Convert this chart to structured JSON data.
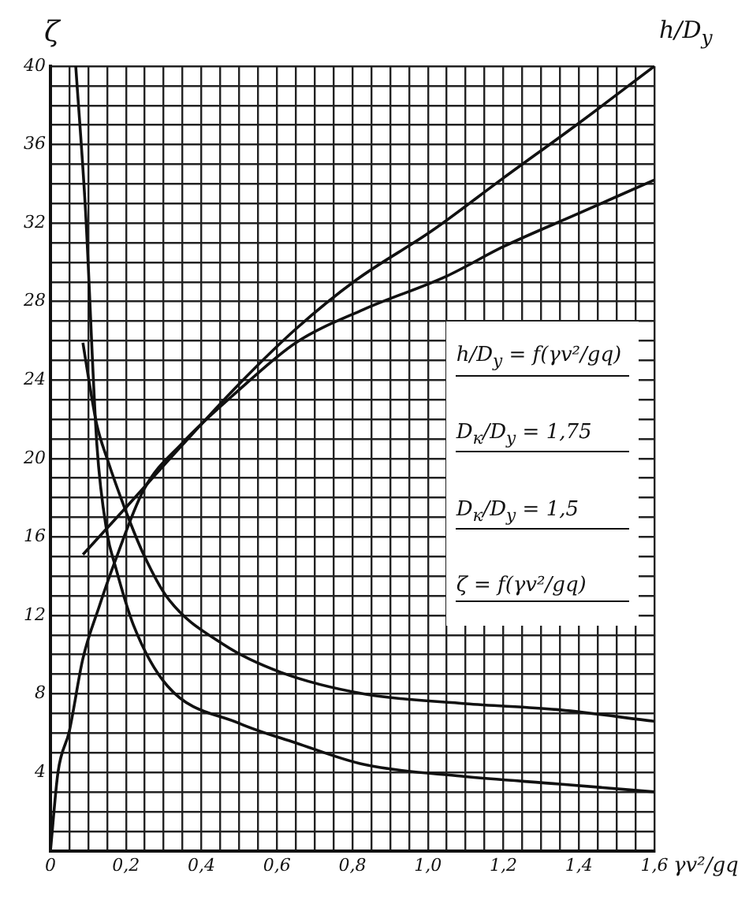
{
  "chart_data": {
    "type": "line",
    "ylabel": "ζ",
    "y2label": "h/D$_{y}$",
    "xlabel": "γv²/gq",
    "xlim": [
      0,
      1.6
    ],
    "xticks": [
      0,
      {
        "value": 0.05,
        "label": null
      },
      {
        "value": 0.1,
        "label": null
      },
      {
        "value": 0.15,
        "label": null
      },
      {
        "value": 0.2,
        "label": "0,2"
      },
      {
        "value": 0.25,
        "label": null
      },
      {
        "value": 0.3,
        "label": null
      },
      {
        "value": 0.35,
        "label": null
      },
      {
        "value": 0.4,
        "label": "0,4"
      },
      {
        "value": 0.45,
        "label": null
      },
      {
        "value": 0.5,
        "label": null
      },
      {
        "value": 0.55,
        "label": null
      },
      {
        "value": 0.6,
        "label": "0,6"
      },
      {
        "value": 0.65,
        "label": null
      },
      {
        "value": 0.7,
        "label": null
      },
      {
        "value": 0.75,
        "label": null
      },
      {
        "value": 0.8,
        "label": "0,8"
      },
      {
        "value": 0.85,
        "label": null
      },
      {
        "value": 0.9,
        "label": null
      },
      {
        "value": 0.95,
        "label": null
      },
      {
        "value": 1.0,
        "label": "1,0"
      },
      {
        "value": 1.05,
        "label": null
      },
      {
        "value": 1.1,
        "label": null
      },
      {
        "value": 1.15,
        "label": null
      },
      {
        "value": 1.2,
        "label": "1,2"
      },
      {
        "value": 1.25,
        "label": null
      },
      {
        "value": 1.3,
        "label": null
      },
      {
        "value": 1.35,
        "label": null
      },
      {
        "value": 1.4,
        "label": "1,4"
      },
      {
        "value": 1.45,
        "label": null
      },
      {
        "value": 1.5,
        "label": null
      },
      {
        "value": 1.55,
        "label": null
      },
      {
        "value": 1.6,
        "label": "1,6"
      }
    ],
    "ylim": [
      0,
      40
    ],
    "yticks": [
      {
        "value": 0,
        "label": null
      },
      {
        "value": 1,
        "label": null
      },
      {
        "value": 2,
        "label": null
      },
      {
        "value": 3,
        "label": null
      },
      4,
      {
        "value": 5,
        "label": null
      },
      {
        "value": 6,
        "label": null
      },
      {
        "value": 7,
        "label": null
      },
      8,
      {
        "value": 9,
        "label": null
      },
      {
        "value": 10,
        "label": null
      },
      {
        "value": 11,
        "label": null
      },
      12,
      {
        "value": 13,
        "label": null
      },
      {
        "value": 14,
        "label": null
      },
      {
        "value": 15,
        "label": null
      },
      16,
      {
        "value": 17,
        "label": null
      },
      {
        "value": 18,
        "label": null
      },
      {
        "value": 19,
        "label": null
      },
      20,
      {
        "value": 21,
        "label": null
      },
      {
        "value": 22,
        "label": null
      },
      {
        "value": 23,
        "label": null
      },
      24,
      {
        "value": 25,
        "label": null
      },
      {
        "value": 26,
        "label": null
      },
      {
        "value": 27,
        "label": null
      },
      28,
      {
        "value": 29,
        "label": null
      },
      {
        "value": 30,
        "label": null
      },
      {
        "value": 31,
        "label": null
      },
      32,
      {
        "value": 33,
        "label": null
      },
      {
        "value": 34,
        "label": null
      },
      {
        "value": 35,
        "label": null
      },
      36,
      {
        "value": 37,
        "label": null
      },
      {
        "value": 38,
        "label": null
      },
      {
        "value": 39,
        "label": null
      },
      40
    ],
    "grid": true,
    "legend": false,
    "marker": "none",
    "line_style": "solid",
    "series": [
      {
        "color": "#111111",
        "x": [
          0.086,
          0.1,
          0.123,
          0.15,
          0.2,
          0.247,
          0.31,
          0.46,
          0.61,
          0.83,
          1.1,
          1.34,
          1.6
        ],
        "values": [
          25.9,
          24.2,
          21.7,
          20.0,
          17.3,
          15.1,
          12.9,
          10.5,
          9.1,
          8.0,
          7.5,
          7.2,
          6.6
        ]
      },
      {
        "color": "#111111",
        "x": [
          0.067,
          0.093,
          0.123,
          0.15,
          0.172,
          0.22,
          0.31,
          0.5,
          0.65,
          0.83,
          1.09,
          1.35,
          1.6
        ],
        "values": [
          40,
          32.6,
          20.7,
          16.2,
          14.5,
          11.5,
          8.4,
          6.5,
          5.5,
          4.4,
          3.8,
          3.4,
          3.0
        ]
      },
      {
        "color": "#111111",
        "x": [
          0,
          0.02,
          0.05,
          0.086,
          0.13,
          0.17,
          0.247,
          0.35,
          0.5,
          0.65,
          0.83,
          1.05,
          1.2,
          1.4,
          1.6
        ],
        "values": [
          0,
          4,
          6.1,
          9.8,
          12.5,
          14.7,
          18.4,
          20.8,
          23.5,
          25.9,
          27.6,
          29.3,
          30.8,
          32.5,
          34.2
        ]
      },
      {
        "color": "#111111",
        "x": [
          0.086,
          0.2,
          0.35,
          0.5,
          0.65,
          0.81,
          1.01,
          1.2,
          1.4,
          1.6
        ],
        "values": [
          15.1,
          17.5,
          20.7,
          23.8,
          26.6,
          29.1,
          31.6,
          34.3,
          37.1,
          40
        ]
      }
    ],
    "annotations": [
      "h/D$_{y}$ = f(γv²/gq)",
      "D$_{к}$/D$_{y}$ = 1,75",
      "D$_{к}$/D$_{y}$ = 1,5",
      "ζ = f(γv²/gq)"
    ]
  }
}
